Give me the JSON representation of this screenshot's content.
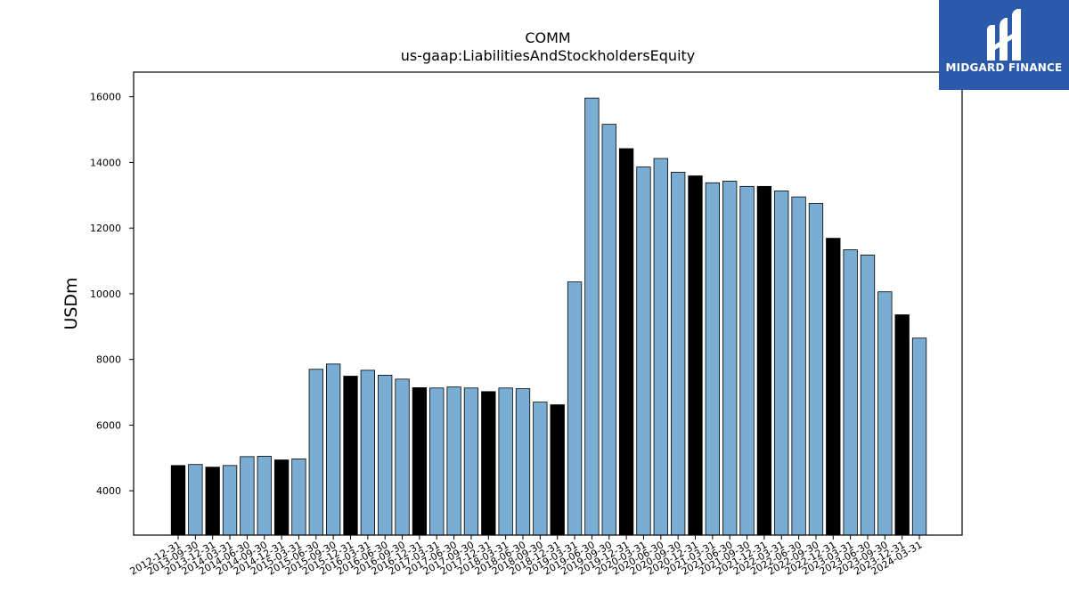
{
  "logo": {
    "text": "MIDGARD FINANCE",
    "bg_color": "#2b5aab"
  },
  "chart_data": {
    "type": "bar",
    "title": "COMM",
    "subtitle": "us-gaap:LiabilitiesAndStockholdersEquity",
    "xlabel": "",
    "ylabel": "USDm",
    "ylim": [
      2650,
      16750
    ],
    "yticks": [
      4000,
      6000,
      8000,
      10000,
      12000,
      14000,
      16000
    ],
    "grid": false,
    "colors": {
      "quarter": "#7aadd4",
      "year_end": "#000000",
      "edge": "#000000"
    },
    "categories": [
      "2012-12-31",
      "2013-09-30",
      "2013-12-31",
      "2014-03-31",
      "2014-06-30",
      "2014-09-30",
      "2014-12-31",
      "2015-03-31",
      "2015-06-30",
      "2015-09-30",
      "2015-12-31",
      "2016-03-31",
      "2016-06-30",
      "2016-09-30",
      "2016-12-31",
      "2017-03-31",
      "2017-06-30",
      "2017-09-30",
      "2017-12-31",
      "2018-03-31",
      "2018-06-30",
      "2018-09-30",
      "2018-12-31",
      "2019-03-31",
      "2019-06-30",
      "2019-09-30",
      "2019-12-31",
      "2020-03-31",
      "2020-06-30",
      "2020-09-30",
      "2020-12-31",
      "2021-03-31",
      "2021-06-30",
      "2021-09-30",
      "2021-12-31",
      "2022-03-31",
      "2022-06-30",
      "2022-09-30",
      "2022-12-31",
      "2023-03-31",
      "2023-06-30",
      "2023-09-30",
      "2023-12-31",
      "2024-03-31"
    ],
    "values": [
      4770,
      4800,
      4720,
      4770,
      5040,
      5050,
      4940,
      4970,
      7700,
      7860,
      7490,
      7670,
      7520,
      7400,
      7140,
      7130,
      7160,
      7130,
      7020,
      7130,
      7110,
      6700,
      6620,
      10360,
      15960,
      15160,
      14420,
      13860,
      14120,
      13700,
      13590,
      13380,
      13430,
      13270,
      13270,
      13130,
      12950,
      12750,
      11690,
      11340,
      11180,
      10060,
      9360,
      8650
    ],
    "year_end": [
      true,
      false,
      true,
      false,
      false,
      false,
      true,
      false,
      false,
      false,
      true,
      false,
      false,
      false,
      true,
      false,
      false,
      false,
      true,
      false,
      false,
      false,
      true,
      false,
      false,
      false,
      true,
      false,
      false,
      false,
      true,
      false,
      false,
      false,
      true,
      false,
      false,
      false,
      true,
      false,
      false,
      false,
      true,
      false
    ]
  }
}
